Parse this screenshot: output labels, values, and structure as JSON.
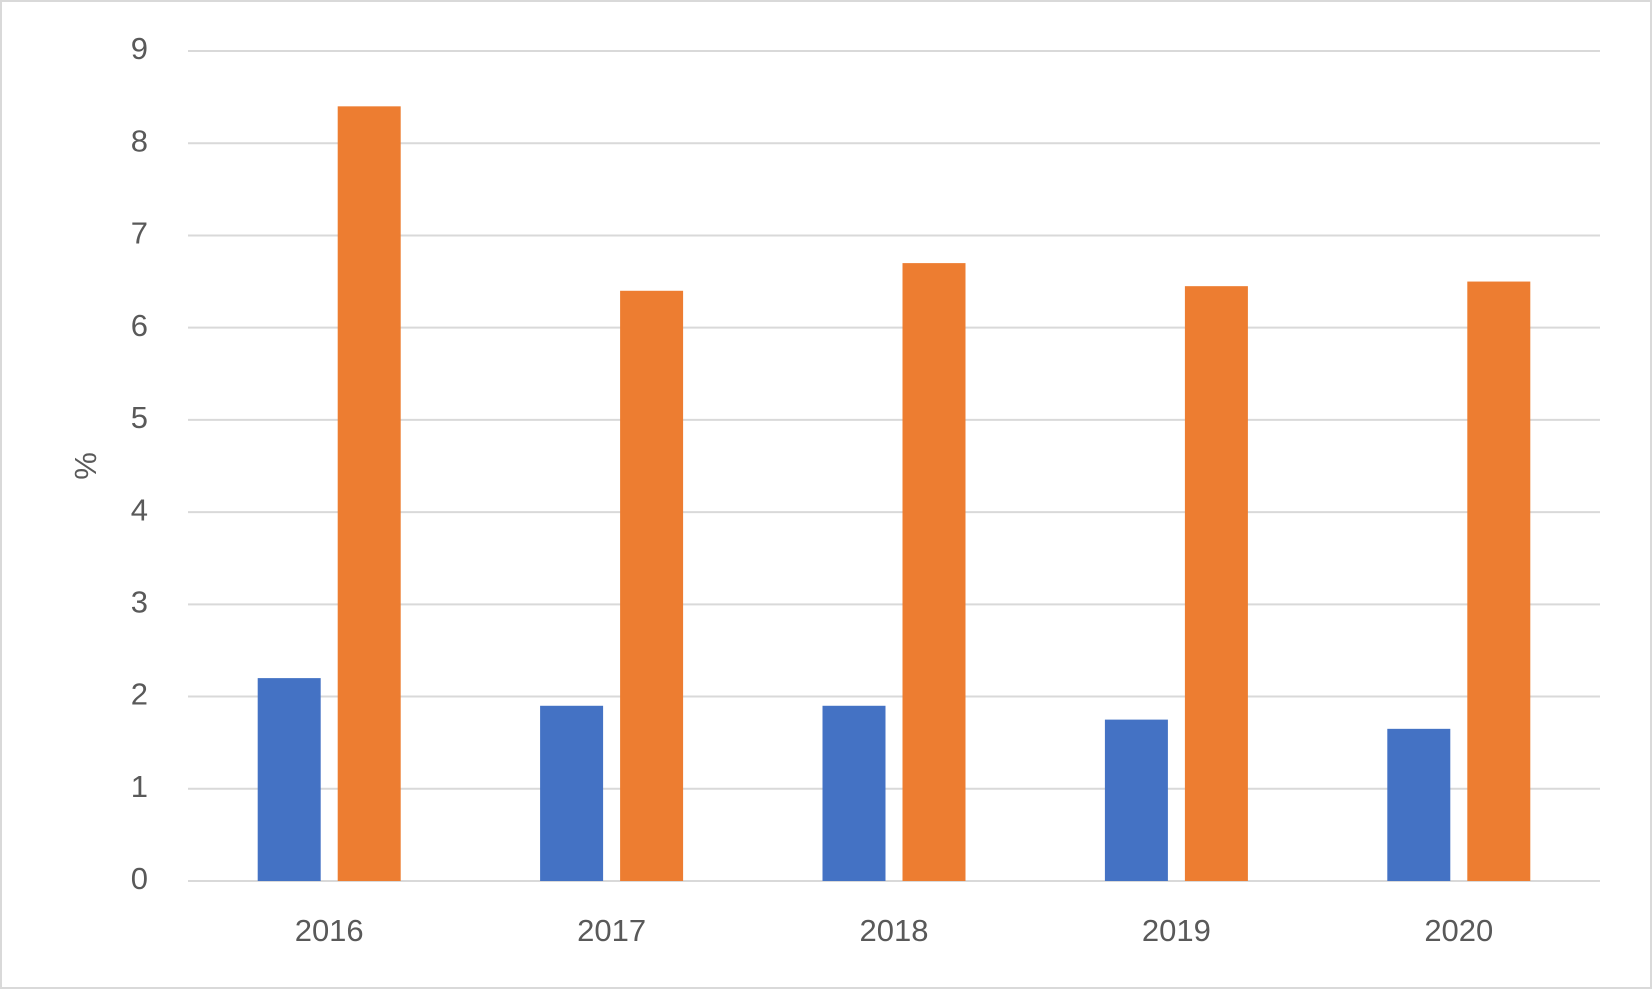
{
  "chart_data": {
    "type": "bar",
    "y_label": "%",
    "categories": [
      "2016",
      "2017",
      "2018",
      "2019",
      "2020"
    ],
    "series": [
      {
        "color": "#4472c4",
        "values": [
          2.2,
          1.9,
          1.9,
          1.75,
          1.65
        ]
      },
      {
        "color": "#ed7d31",
        "values": [
          8.4,
          6.4,
          6.7,
          6.45,
          6.5
        ]
      }
    ],
    "ylim": [
      0,
      9
    ],
    "yticks": [
      0,
      1,
      2,
      3,
      4,
      5,
      6,
      7,
      8,
      9
    ],
    "grid": true
  }
}
